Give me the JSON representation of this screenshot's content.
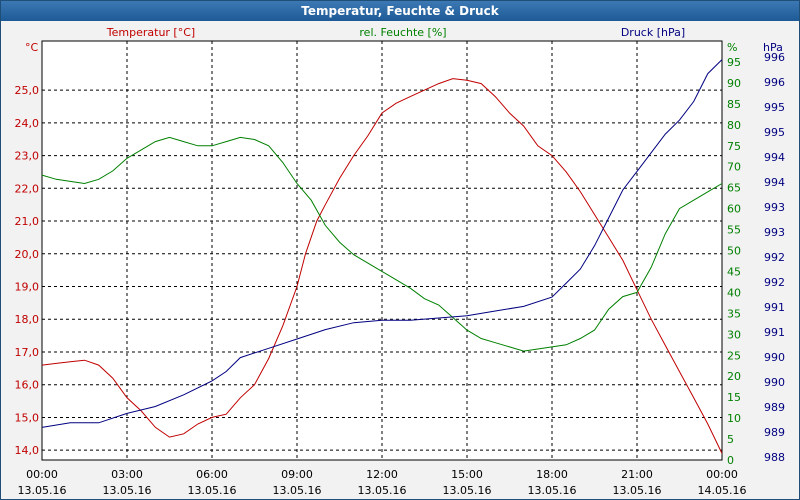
{
  "window": {
    "title": "Temperatur, Feuchte & Druck"
  },
  "chart_data": {
    "type": "line",
    "title": "Temperatur, Feuchte & Druck",
    "grid": true,
    "x_ticks": [
      {
        "time": "00:00",
        "date": "13.05.16"
      },
      {
        "time": "03:00",
        "date": "13.05.16"
      },
      {
        "time": "06:00",
        "date": "13.05.16"
      },
      {
        "time": "09:00",
        "date": "13.05.16"
      },
      {
        "time": "12:00",
        "date": "13.05.16"
      },
      {
        "time": "15:00",
        "date": "13.05.16"
      },
      {
        "time": "18:00",
        "date": "13.05.16"
      },
      {
        "time": "21:00",
        "date": "13.05.16"
      },
      {
        "time": "00:00",
        "date": "14.05.16"
      }
    ],
    "x_range_hours": [
      0,
      24
    ],
    "axes": {
      "temperature": {
        "unit": "°C",
        "color": "#c00000",
        "ylim": [
          13.7,
          26.5
        ],
        "ticks": [
          "14,0",
          "15,0",
          "16,0",
          "17,0",
          "18,0",
          "19,0",
          "20,0",
          "21,0",
          "22,0",
          "23,0",
          "24,0",
          "25,0"
        ]
      },
      "humidity": {
        "unit": "%",
        "color": "#008000",
        "ylim": [
          0,
          100
        ],
        "ticks": [
          "0",
          "5",
          "10",
          "15",
          "20",
          "25",
          "30",
          "35",
          "40",
          "45",
          "50",
          "55",
          "60",
          "65",
          "70",
          "75",
          "80",
          "85",
          "90",
          "95"
        ]
      },
      "pressure": {
        "unit": "hPa",
        "color": "#000080",
        "ylim": [
          987.8,
          996.8
        ],
        "ticks": [
          "988",
          "989",
          "989",
          "990",
          "990",
          "991",
          "991",
          "992",
          "992",
          "993",
          "993",
          "994",
          "994",
          "995",
          "995",
          "996",
          "996"
        ]
      }
    },
    "series": [
      {
        "name": "Temperatur [°C]",
        "axis": "temperature",
        "color": "#c00000",
        "points": [
          [
            0,
            16.6
          ],
          [
            0.5,
            16.65
          ],
          [
            1,
            16.7
          ],
          [
            1.5,
            16.75
          ],
          [
            2,
            16.6
          ],
          [
            2.5,
            16.2
          ],
          [
            3,
            15.6
          ],
          [
            3.5,
            15.2
          ],
          [
            4,
            14.7
          ],
          [
            4.5,
            14.4
          ],
          [
            5,
            14.5
          ],
          [
            5.5,
            14.8
          ],
          [
            6,
            15.0
          ],
          [
            6.5,
            15.1
          ],
          [
            7,
            15.6
          ],
          [
            7.5,
            16.0
          ],
          [
            8,
            16.8
          ],
          [
            8.5,
            17.8
          ],
          [
            9,
            19.0
          ],
          [
            9.3,
            20.0
          ],
          [
            9.7,
            21.0
          ],
          [
            10,
            21.5
          ],
          [
            10.5,
            22.3
          ],
          [
            11,
            23.0
          ],
          [
            11.5,
            23.6
          ],
          [
            12,
            24.3
          ],
          [
            12.5,
            24.6
          ],
          [
            13,
            24.8
          ],
          [
            13.5,
            25.0
          ],
          [
            14,
            25.2
          ],
          [
            14.5,
            25.35
          ],
          [
            15,
            25.3
          ],
          [
            15.5,
            25.2
          ],
          [
            16,
            24.8
          ],
          [
            16.5,
            24.3
          ],
          [
            17,
            23.9
          ],
          [
            17.5,
            23.3
          ],
          [
            18,
            23.0
          ],
          [
            18.5,
            22.5
          ],
          [
            19,
            21.9
          ],
          [
            19.5,
            21.2
          ],
          [
            20,
            20.5
          ],
          [
            20.5,
            19.8
          ],
          [
            21,
            18.9
          ],
          [
            21.5,
            18.0
          ],
          [
            22,
            17.2
          ],
          [
            22.5,
            16.4
          ],
          [
            23,
            15.6
          ],
          [
            23.5,
            14.8
          ],
          [
            24,
            13.9
          ]
        ]
      },
      {
        "name": "rel. Feuchte [%]",
        "axis": "humidity",
        "color": "#008000",
        "points": [
          [
            0,
            68
          ],
          [
            0.5,
            67
          ],
          [
            1,
            66.5
          ],
          [
            1.5,
            66
          ],
          [
            2,
            67
          ],
          [
            2.5,
            69
          ],
          [
            3,
            72
          ],
          [
            3.5,
            74
          ],
          [
            4,
            76
          ],
          [
            4.5,
            77
          ],
          [
            5,
            76
          ],
          [
            5.5,
            75
          ],
          [
            6,
            75
          ],
          [
            6.5,
            76
          ],
          [
            7,
            77
          ],
          [
            7.5,
            76.5
          ],
          [
            8,
            75
          ],
          [
            8.5,
            71
          ],
          [
            9,
            66
          ],
          [
            9.5,
            62
          ],
          [
            10,
            56
          ],
          [
            10.5,
            52
          ],
          [
            11,
            49
          ],
          [
            11.5,
            47
          ],
          [
            12,
            45
          ],
          [
            12.5,
            43
          ],
          [
            13,
            41
          ],
          [
            13.5,
            38.5
          ],
          [
            14,
            37
          ],
          [
            14.5,
            34
          ],
          [
            15,
            31
          ],
          [
            15.5,
            29
          ],
          [
            16,
            28
          ],
          [
            16.5,
            27
          ],
          [
            17,
            26
          ],
          [
            17.5,
            26.5
          ],
          [
            18,
            27
          ],
          [
            18.5,
            27.5
          ],
          [
            19,
            29
          ],
          [
            19.5,
            31
          ],
          [
            20,
            36
          ],
          [
            20.5,
            39
          ],
          [
            21,
            40
          ],
          [
            21.5,
            46
          ],
          [
            22,
            54
          ],
          [
            22.5,
            60
          ],
          [
            23,
            62
          ],
          [
            23.5,
            64
          ],
          [
            24,
            66
          ]
        ]
      },
      {
        "name": "Druck [hPa]",
        "axis": "pressure",
        "color": "#000080",
        "points": [
          [
            0,
            988.5
          ],
          [
            1,
            988.6
          ],
          [
            2,
            988.6
          ],
          [
            3,
            988.8
          ],
          [
            4,
            988.95
          ],
          [
            5,
            989.2
          ],
          [
            6,
            989.5
          ],
          [
            6.5,
            989.7
          ],
          [
            7,
            990.0
          ],
          [
            8,
            990.2
          ],
          [
            9,
            990.4
          ],
          [
            10,
            990.6
          ],
          [
            11,
            990.75
          ],
          [
            12,
            990.8
          ],
          [
            13,
            990.8
          ],
          [
            14,
            990.85
          ],
          [
            15,
            990.9
          ],
          [
            16,
            991.0
          ],
          [
            17,
            991.1
          ],
          [
            18,
            991.3
          ],
          [
            18.5,
            991.6
          ],
          [
            19,
            991.9
          ],
          [
            19.5,
            992.4
          ],
          [
            20,
            993.0
          ],
          [
            20.5,
            993.6
          ],
          [
            21,
            994.0
          ],
          [
            21.5,
            994.4
          ],
          [
            22,
            994.8
          ],
          [
            22.5,
            995.1
          ],
          [
            23,
            995.5
          ],
          [
            23.5,
            996.1
          ],
          [
            24,
            996.4
          ]
        ]
      }
    ]
  }
}
